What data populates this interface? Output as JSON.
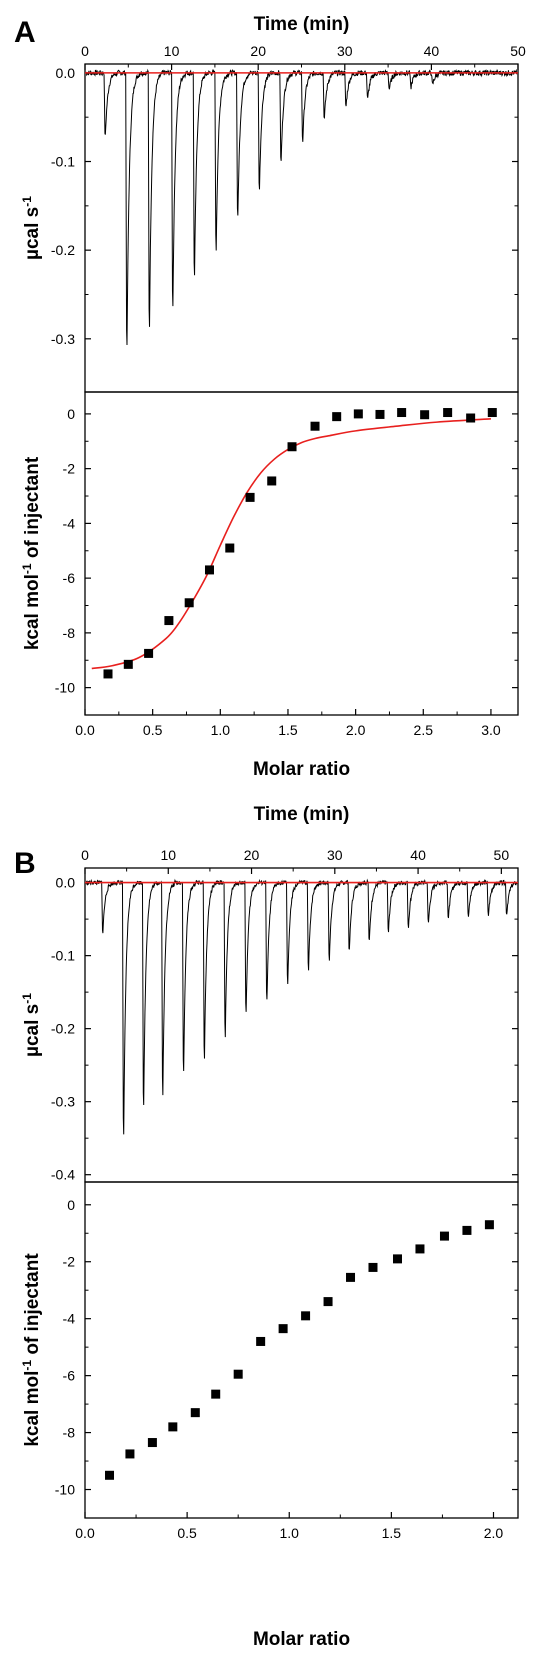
{
  "colors": {
    "fit": "#e8201e",
    "trace": "#000000",
    "marker": "#000000",
    "axis": "#000000"
  },
  "panels": [
    {
      "letter": "A"
    },
    {
      "letter": "B"
    }
  ],
  "chart_data": [
    {
      "panel": "A",
      "type": "line",
      "role": "thermogram",
      "xlabel": "Time (min)",
      "ylabel": "µcal s-1",
      "ylabel_main": "µcal s",
      "ylabel_sup": "-1",
      "xlim": [
        0,
        50
      ],
      "ylim": [
        -0.36,
        0.01
      ],
      "xticks": [
        "0",
        "10",
        "20",
        "30",
        "40",
        "50"
      ],
      "xtick_values": [
        0,
        10,
        20,
        30,
        40,
        50
      ],
      "yticks": [
        "0.0",
        "-0.1",
        "-0.2",
        "-0.3"
      ],
      "ytick_values": [
        0,
        -0.1,
        -0.2,
        -0.3
      ],
      "series": [
        {
          "role": "raw-heat-trace",
          "injection_times": [
            2.2,
            4.7,
            7.3,
            10.0,
            12.5,
            15.0,
            17.5,
            20.0,
            22.5,
            25.0,
            27.5,
            30.0,
            32.5,
            35.0,
            37.5,
            40.0
          ],
          "peak_minima": [
            -0.08,
            -0.345,
            -0.318,
            -0.293,
            -0.255,
            -0.222,
            -0.182,
            -0.146,
            -0.112,
            -0.085,
            -0.057,
            -0.042,
            -0.033,
            -0.02,
            -0.018,
            -0.015
          ]
        },
        {
          "role": "baseline",
          "x": [
            0,
            50
          ],
          "y": [
            0,
            0
          ]
        }
      ]
    },
    {
      "panel": "A",
      "type": "scatter",
      "role": "binding-isotherm",
      "xlabel": "Molar ratio",
      "ylabel": "kcal mol-1 of injectant",
      "ylabel_pre": "kcal mol",
      "ylabel_sup": "-1",
      "ylabel_post": " of injectant",
      "xlim": [
        0,
        3.2
      ],
      "ylim": [
        -11,
        0.8
      ],
      "xticks": [
        "0.0",
        "0.5",
        "1.0",
        "1.5",
        "2.0",
        "2.5",
        "3.0"
      ],
      "xtick_values": [
        0,
        0.5,
        1.0,
        1.5,
        2.0,
        2.5,
        3.0
      ],
      "yticks": [
        "0",
        "-2",
        "-4",
        "-6",
        "-8",
        "-10"
      ],
      "ytick_values": [
        0,
        -2,
        -4,
        -6,
        -8,
        -10
      ],
      "series": [
        {
          "role": "data-points",
          "x": [
            0.17,
            0.32,
            0.47,
            0.62,
            0.77,
            0.92,
            1.07,
            1.22,
            1.38,
            1.53,
            1.7,
            1.86,
            2.02,
            2.18,
            2.34,
            2.51,
            2.68,
            2.85,
            3.01
          ],
          "y": [
            -9.5,
            -9.15,
            -8.75,
            -7.55,
            -6.9,
            -5.7,
            -4.9,
            -3.05,
            -2.45,
            -1.2,
            -0.45,
            -0.1,
            0.0,
            -0.02,
            0.05,
            -0.03,
            0.05,
            -0.15,
            0.05
          ]
        },
        {
          "role": "fit-curve",
          "x": [
            0.05,
            0.2,
            0.4,
            0.6,
            0.7,
            0.8,
            0.9,
            1.0,
            1.1,
            1.2,
            1.3,
            1.4,
            1.5,
            1.6,
            1.7,
            1.8,
            2.0,
            2.3,
            2.6,
            3.0
          ],
          "y": [
            -9.3,
            -9.2,
            -8.9,
            -8.2,
            -7.6,
            -6.8,
            -5.9,
            -4.8,
            -3.75,
            -2.85,
            -2.15,
            -1.65,
            -1.3,
            -1.05,
            -0.9,
            -0.8,
            -0.62,
            -0.45,
            -0.3,
            -0.18
          ]
        }
      ]
    },
    {
      "panel": "B",
      "type": "line",
      "role": "thermogram",
      "xlabel": "Time (min)",
      "ylabel": "µcal s-1",
      "ylabel_main": "µcal s",
      "ylabel_sup": "-1",
      "xlim": [
        0,
        52
      ],
      "ylim": [
        -0.41,
        0.02
      ],
      "xticks": [
        "0",
        "10",
        "20",
        "30",
        "40",
        "50"
      ],
      "xtick_values": [
        0,
        10,
        20,
        30,
        40,
        50
      ],
      "yticks": [
        "0.0",
        "-0.1",
        "-0.2",
        "-0.3",
        "-0.4"
      ],
      "ytick_values": [
        0,
        -0.1,
        -0.2,
        -0.3,
        -0.4
      ],
      "series": [
        {
          "role": "raw-heat-trace",
          "injection_times": [
            2.0,
            4.5,
            6.9,
            9.2,
            11.7,
            14.2,
            16.7,
            19.2,
            21.7,
            24.2,
            26.7,
            29.2,
            31.6,
            34.0,
            36.3,
            38.7,
            41.1,
            43.5,
            45.9,
            48.3,
            50.5
          ],
          "peak_minima": [
            -0.075,
            -0.387,
            -0.342,
            -0.321,
            -0.289,
            -0.265,
            -0.233,
            -0.198,
            -0.181,
            -0.153,
            -0.133,
            -0.117,
            -0.105,
            -0.09,
            -0.075,
            -0.067,
            -0.062,
            -0.055,
            -0.053,
            -0.05,
            -0.048
          ]
        },
        {
          "role": "baseline",
          "x": [
            0,
            52
          ],
          "y": [
            0,
            0
          ]
        }
      ]
    },
    {
      "panel": "B",
      "type": "scatter",
      "role": "binding-isotherm",
      "xlabel": "Molar ratio",
      "ylabel": "kcal mol-1 of injectant",
      "ylabel_pre": "kcal mol",
      "ylabel_sup": "-1",
      "ylabel_post": " of injectant",
      "xlim": [
        0,
        2.12
      ],
      "ylim": [
        -11,
        0.8
      ],
      "xticks": [
        "0.0",
        "0.5",
        "1.0",
        "1.5",
        "2.0"
      ],
      "xtick_values": [
        0,
        0.5,
        1.0,
        1.5,
        2.0
      ],
      "yticks": [
        "0",
        "-2",
        "-4",
        "-6",
        "-8",
        "-10"
      ],
      "ytick_values": [
        0,
        -2,
        -4,
        -6,
        -8,
        -10
      ],
      "series": [
        {
          "role": "data-points",
          "x": [
            0.12,
            0.22,
            0.33,
            0.43,
            0.54,
            0.64,
            0.75,
            0.86,
            0.97,
            1.08,
            1.19,
            1.3,
            1.41,
            1.53,
            1.64,
            1.76,
            1.87,
            1.98
          ],
          "y": [
            -9.5,
            -8.75,
            -8.35,
            -7.8,
            -7.3,
            -6.65,
            -5.95,
            -4.8,
            -4.35,
            -3.9,
            -3.4,
            -2.55,
            -2.2,
            -1.9,
            -1.55,
            -1.1,
            -0.9,
            -0.7
          ]
        }
      ]
    }
  ]
}
